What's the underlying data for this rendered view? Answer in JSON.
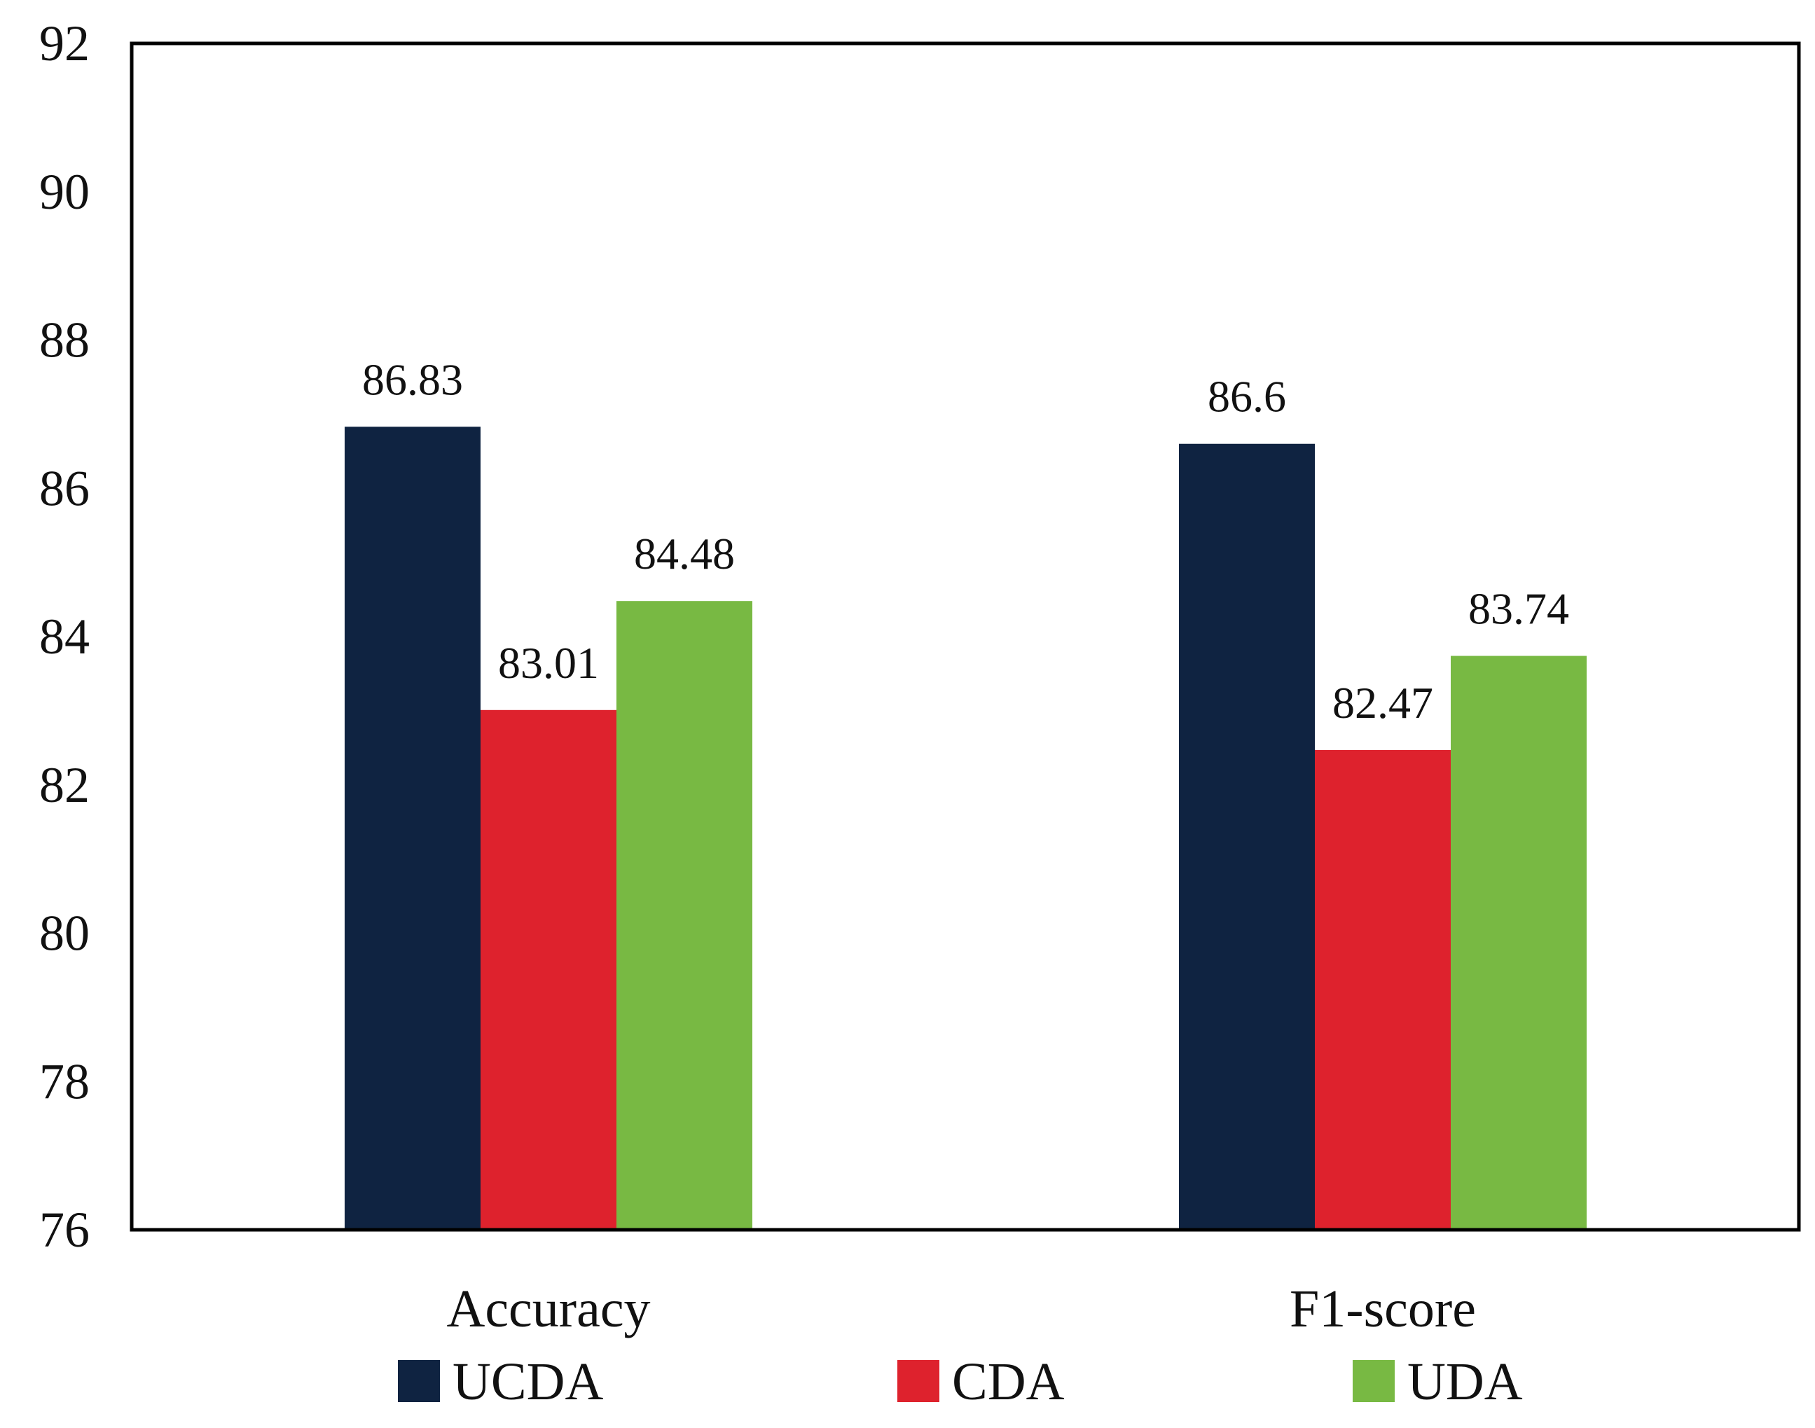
{
  "chart_data": {
    "type": "bar",
    "title": "",
    "xlabel": "",
    "ylabel": "",
    "ylim": [
      76,
      92
    ],
    "yticks": [
      76,
      78,
      80,
      82,
      84,
      86,
      88,
      90,
      92
    ],
    "grid": false,
    "legend_position": "bottom",
    "categories": [
      "Accuracy",
      "F1-score"
    ],
    "series": [
      {
        "name": "UCDA",
        "color": "#0f2341",
        "values": [
          86.83,
          86.6
        ],
        "labels": [
          "86.83",
          "86.6"
        ]
      },
      {
        "name": "CDA",
        "color": "#de222d",
        "values": [
          83.01,
          82.47
        ],
        "labels": [
          "83.01",
          "82.47"
        ]
      },
      {
        "name": "UDA",
        "color": "#78b943",
        "values": [
          84.48,
          83.74
        ],
        "labels": [
          "84.48",
          "83.74"
        ]
      }
    ]
  }
}
